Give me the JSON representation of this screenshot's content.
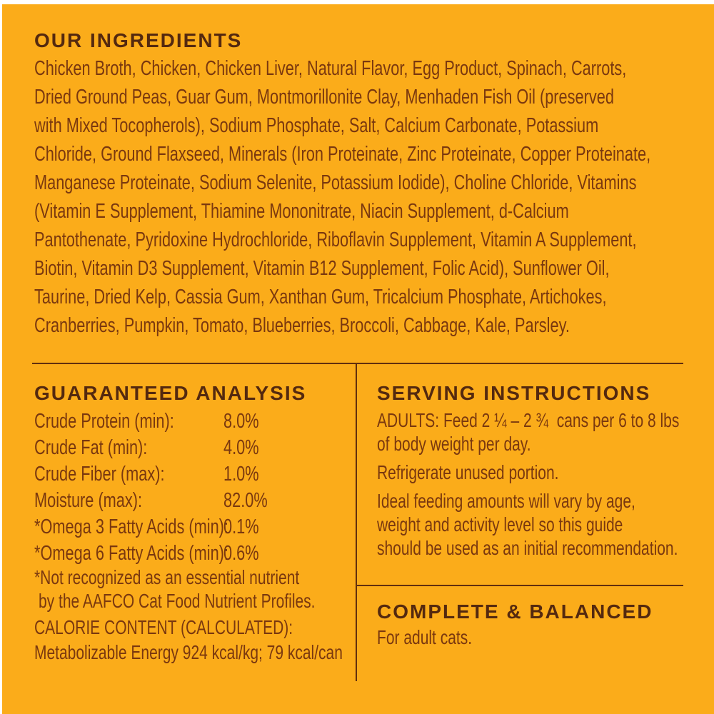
{
  "colors": {
    "background": "#FBAC1A",
    "heading": "#54290F",
    "body_text": "#7A380F",
    "rule": "#612F0E",
    "scan_edge": "#FFFFFF"
  },
  "ingredients": {
    "title": "OUR INGREDIENTS",
    "lines": [
      "Chicken Broth, Chicken, Chicken Liver, Natural Flavor, Egg Product, Spinach, Carrots,",
      "Dried Ground Peas, Guar Gum, Montmorillonite Clay, Menhaden Fish Oil (preserved",
      "with Mixed Tocopherols), Sodium Phosphate, Salt, Calcium Carbonate, Potassium",
      "Chloride, Ground Flaxseed, Minerals (Iron Proteinate, Zinc Proteinate, Copper Proteinate,",
      "Manganese Proteinate, Sodium Selenite, Potassium Iodide), Choline Chloride, Vitamins",
      "(Vitamin E Supplement, Thiamine Mononitrate, Niacin Supplement, d-Calcium",
      "Pantothenate, Pyridoxine Hydrochloride, Riboflavin Supplement, Vitamin A Supplement,",
      "Biotin, Vitamin D3 Supplement, Vitamin B12 Supplement, Folic Acid), Sunflower Oil,",
      "Taurine, Dried Kelp, Cassia Gum, Xanthan Gum, Tricalcium Phosphate, Artichokes,",
      "Cranberries, Pumpkin, Tomato, Blueberries, Broccoli, Cabbage, Kale, Parsley."
    ]
  },
  "analysis": {
    "title": "GUARANTEED ANALYSIS",
    "rows": [
      {
        "label": "Crude Protein (min):",
        "value": "8.0%"
      },
      {
        "label": "Crude Fat (min):",
        "value": "4.0%"
      },
      {
        "label": "Crude Fiber (max):",
        "value": "1.0%"
      },
      {
        "label": "Moisture (max):",
        "value": "82.0%"
      },
      {
        "label": "*Omega 3 Fatty Acids (min):",
        "value": "0.1%"
      },
      {
        "label": "*Omega 6 Fatty Acids (min):",
        "value": "0.6%"
      }
    ],
    "footnote_lines": [
      "*Not recognized as an essential nutrient",
      "by the AAFCO Cat Food Nutrient Profiles."
    ],
    "calorie_heading": "CALORIE CONTENT (CALCULATED):",
    "calorie_text": "Metabolizable Energy 924 kcal/kg; 79 kcal/can"
  },
  "serving": {
    "title": "SERVING INSTRUCTIONS",
    "paragraphs": [
      [
        "ADULTS: Feed 2 ¼ – 2 ¾  cans per 6 to 8 lbs",
        "of body weight per day."
      ],
      [
        "Refrigerate unused portion."
      ],
      [
        "Ideal feeding amounts will vary by age,",
        "weight and activity level so this guide",
        "should be used as an initial recommendation."
      ]
    ]
  },
  "complete": {
    "title": "COMPLETE & BALANCED",
    "text": "For adult cats."
  }
}
